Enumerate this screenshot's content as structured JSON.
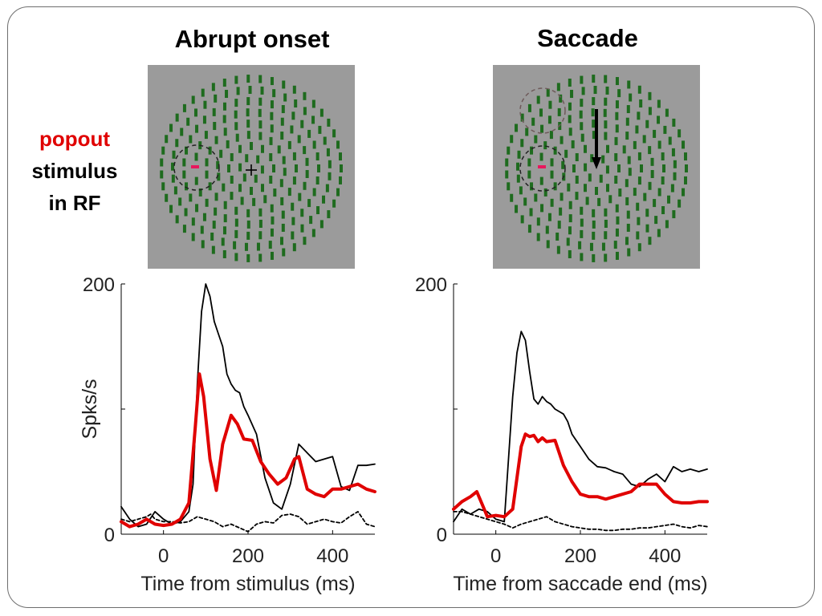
{
  "panels": {
    "left_title": "Abrupt onset",
    "right_title": "Saccade"
  },
  "row_label": {
    "line1": "popout",
    "line2": "stimulus",
    "line3": "in RF"
  },
  "stimulus": {
    "background_color": "#9b9b9b",
    "bar_color": "#1e6b1e",
    "popout_color": "#e8175d",
    "left_fixation_glyph": "+",
    "right_arrow": "saccade-arrow-down"
  },
  "colors": {
    "popout_trace": "#e00000",
    "other_trace": "#000000",
    "baseline_trace": "#000000"
  },
  "chart_data": [
    {
      "type": "line",
      "title": "",
      "xlabel": "Time from stimulus (ms)",
      "ylabel": "Spks/s",
      "xlim": [
        -100,
        500
      ],
      "ylim": [
        0,
        200
      ],
      "xticks": [
        0,
        200,
        400
      ],
      "yticks": [
        0,
        200
      ],
      "yminor": [
        100
      ],
      "series": [
        {
          "key": "popout",
          "style": "thick-red",
          "x": [
            -100,
            -80,
            -60,
            -40,
            -20,
            0,
            20,
            40,
            60,
            75,
            85,
            95,
            110,
            125,
            140,
            160,
            175,
            190,
            210,
            230,
            250,
            270,
            290,
            310,
            320,
            340,
            360,
            380,
            400,
            420,
            440,
            460,
            480,
            500
          ],
          "y": [
            10,
            6,
            8,
            12,
            8,
            7,
            8,
            12,
            25,
            85,
            128,
            110,
            60,
            35,
            72,
            95,
            88,
            76,
            75,
            58,
            48,
            40,
            45,
            60,
            62,
            36,
            32,
            30,
            36,
            36,
            38,
            40,
            36,
            34
          ]
        },
        {
          "key": "other",
          "style": "thin-black",
          "x": [
            -100,
            -80,
            -60,
            -40,
            -20,
            0,
            20,
            40,
            60,
            70,
            80,
            90,
            100,
            110,
            120,
            130,
            140,
            150,
            160,
            170,
            180,
            190,
            200,
            220,
            240,
            260,
            280,
            300,
            320,
            340,
            360,
            380,
            400,
            420,
            440,
            460,
            480,
            500
          ],
          "y": [
            22,
            12,
            6,
            8,
            18,
            12,
            8,
            10,
            18,
            40,
            120,
            178,
            200,
            190,
            170,
            160,
            150,
            128,
            120,
            115,
            113,
            102,
            95,
            80,
            45,
            25,
            20,
            40,
            72,
            65,
            58,
            60,
            62,
            38,
            35,
            55,
            55,
            56
          ]
        },
        {
          "key": "baseline",
          "style": "dashed-black",
          "x": [
            -100,
            -80,
            -60,
            -40,
            -30,
            -20,
            0,
            20,
            40,
            60,
            80,
            100,
            120,
            140,
            160,
            180,
            200,
            220,
            240,
            260,
            280,
            300,
            320,
            340,
            360,
            380,
            400,
            420,
            440,
            460,
            480,
            500
          ],
          "y": [
            12,
            10,
            12,
            14,
            16,
            12,
            10,
            10,
            9,
            10,
            14,
            12,
            10,
            6,
            8,
            5,
            2,
            8,
            10,
            9,
            15,
            16,
            14,
            8,
            10,
            12,
            10,
            9,
            14,
            18,
            8,
            6
          ]
        }
      ]
    },
    {
      "type": "line",
      "title": "",
      "xlabel": "Time from saccade end (ms)",
      "ylabel": "",
      "xlim": [
        -100,
        500
      ],
      "ylim": [
        0,
        200
      ],
      "xticks": [
        0,
        200,
        400
      ],
      "yticks": [
        0,
        200
      ],
      "yminor": [
        100
      ],
      "series": [
        {
          "key": "popout",
          "style": "thick-red",
          "x": [
            -100,
            -80,
            -60,
            -45,
            -30,
            -20,
            0,
            20,
            40,
            60,
            70,
            80,
            90,
            100,
            110,
            120,
            140,
            160,
            180,
            200,
            220,
            240,
            260,
            280,
            300,
            320,
            340,
            360,
            380,
            400,
            420,
            440,
            460,
            480,
            500
          ],
          "y": [
            20,
            26,
            30,
            34,
            22,
            14,
            15,
            14,
            20,
            70,
            80,
            78,
            79,
            74,
            77,
            74,
            75,
            55,
            42,
            32,
            30,
            30,
            28,
            30,
            32,
            34,
            40,
            40,
            40,
            32,
            26,
            25,
            25,
            26,
            26
          ]
        },
        {
          "key": "other",
          "style": "thin-black",
          "x": [
            -100,
            -80,
            -60,
            -40,
            -20,
            0,
            20,
            40,
            50,
            60,
            70,
            80,
            90,
            100,
            110,
            120,
            130,
            140,
            150,
            160,
            170,
            180,
            200,
            220,
            240,
            260,
            280,
            300,
            320,
            340,
            360,
            380,
            400,
            420,
            440,
            460,
            480,
            500
          ],
          "y": [
            10,
            20,
            16,
            20,
            18,
            12,
            10,
            110,
            145,
            162,
            155,
            130,
            108,
            104,
            110,
            106,
            104,
            100,
            98,
            96,
            90,
            80,
            70,
            60,
            54,
            53,
            50,
            48,
            40,
            38,
            44,
            48,
            42,
            54,
            50,
            52,
            50,
            52
          ]
        },
        {
          "key": "baseline",
          "style": "dashed-black",
          "x": [
            -100,
            -80,
            -60,
            -40,
            -20,
            0,
            20,
            40,
            60,
            80,
            100,
            120,
            140,
            160,
            180,
            200,
            220,
            240,
            260,
            280,
            300,
            320,
            340,
            360,
            380,
            400,
            420,
            440,
            460,
            480,
            500
          ],
          "y": [
            18,
            18,
            16,
            14,
            12,
            10,
            8,
            5,
            8,
            10,
            12,
            14,
            10,
            8,
            6,
            5,
            4,
            4,
            3,
            3,
            4,
            4,
            5,
            5,
            6,
            7,
            8,
            6,
            5,
            7,
            6
          ]
        }
      ]
    }
  ]
}
